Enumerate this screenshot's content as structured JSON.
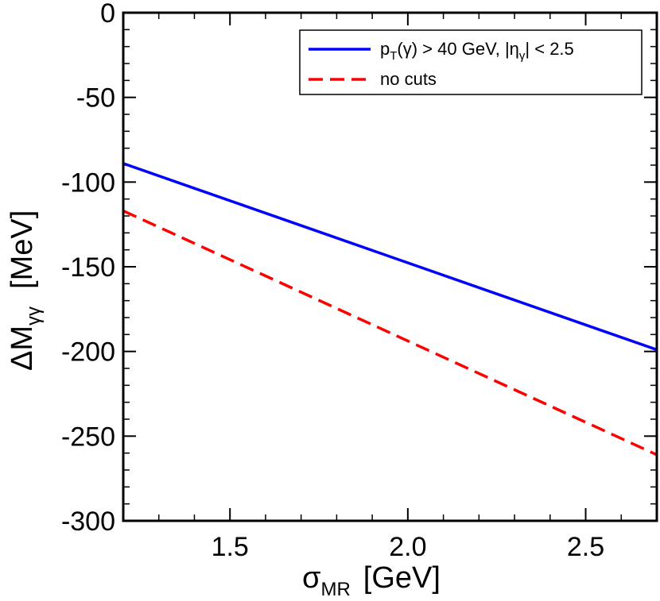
{
  "chart_data": {
    "type": "line",
    "x": [
      1.2,
      2.7
    ],
    "series": [
      {
        "name": "pT(γ) > 40 GeV, |ηγ| < 2.5",
        "name_parts": {
          "p": "p",
          "T": "T",
          "mid": "(γ) > 40 GeV, |η",
          "gamma": "γ",
          "tail": "| < 2.5"
        },
        "values": [
          -89,
          -199
        ],
        "color": "#0000ff",
        "dash": "solid"
      },
      {
        "name": "no cuts",
        "values": [
          -117,
          -261
        ],
        "color": "#ff0000",
        "dash": "dashed"
      }
    ],
    "xlim": [
      1.2,
      2.7
    ],
    "ylim": [
      -300,
      0
    ],
    "x_ticks": [
      1.5,
      2.0,
      2.5
    ],
    "x_tick_labels": [
      "1.5",
      "2.0",
      "2.5"
    ],
    "y_ticks": [
      0,
      -50,
      -100,
      -150,
      -200,
      -250,
      -300
    ],
    "y_tick_labels": [
      "0",
      "-50",
      "-100",
      "-150",
      "-200",
      "-250",
      "-300"
    ],
    "xlabel": "σMR [GeV]",
    "xlabel_parts": {
      "symbol": "σ",
      "sub": "MR",
      "unit": "[GeV]"
    },
    "ylabel": "ΔMγγ [MeV]",
    "ylabel_parts": {
      "symbol": "ΔM",
      "sub": "γγ",
      "unit": "[MeV]"
    },
    "legend_position": "top-right",
    "grid": false
  }
}
